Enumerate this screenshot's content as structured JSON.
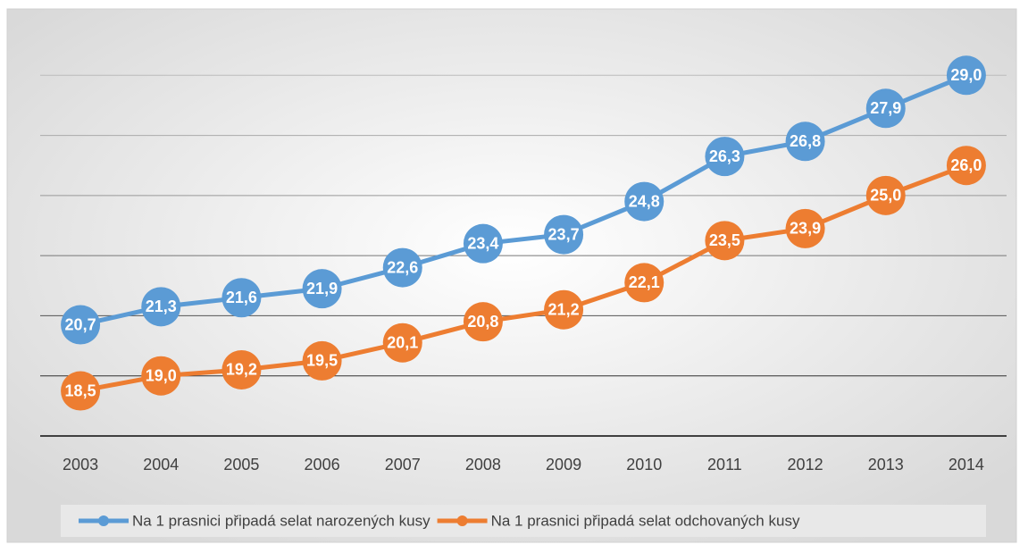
{
  "chart_data": {
    "type": "line",
    "categories": [
      "2003",
      "2004",
      "2005",
      "2006",
      "2007",
      "2008",
      "2009",
      "2010",
      "2011",
      "2012",
      "2013",
      "2014"
    ],
    "series": [
      {
        "name": "Na 1 prasnici připadá selat narozených kusy",
        "color": "#5b9bd5",
        "values": [
          20.7,
          21.3,
          21.6,
          21.9,
          22.6,
          23.4,
          23.7,
          24.8,
          26.3,
          26.8,
          27.9,
          29.0
        ],
        "value_labels": [
          "20,7",
          "21,3",
          "21,6",
          "21,9",
          "22,6",
          "23,4",
          "23,7",
          "24,8",
          "26,3",
          "26,8",
          "27,9",
          "29,0"
        ]
      },
      {
        "name": "Na 1 prasnici připadá selat odchovaných kusy",
        "color": "#ed7d31",
        "values": [
          18.5,
          19.0,
          19.2,
          19.5,
          20.1,
          20.8,
          21.2,
          22.1,
          23.5,
          23.9,
          25.0,
          26.0
        ],
        "value_labels": [
          "18,5",
          "19,0",
          "19,2",
          "19,5",
          "20,1",
          "20,8",
          "21,2",
          "22,1",
          "23,5",
          "23,9",
          "25,0",
          "26,0"
        ]
      }
    ],
    "ylim": [
      17,
      31
    ],
    "yticks": [
      17,
      19,
      21,
      23,
      25,
      27,
      29
    ],
    "grid": true,
    "legend": "bottom"
  }
}
